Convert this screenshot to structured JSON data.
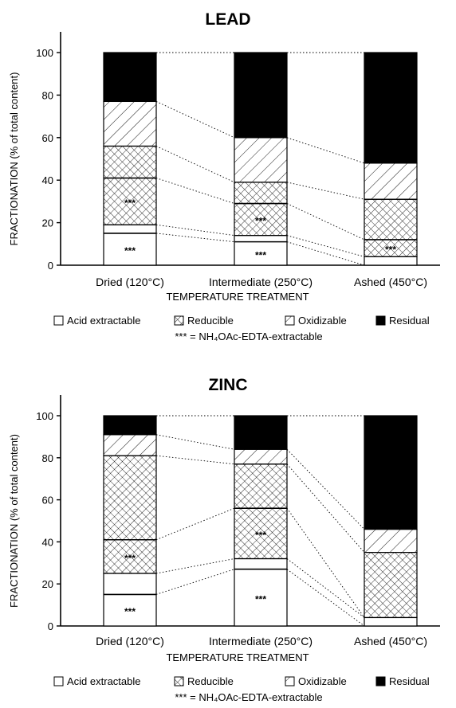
{
  "chart_data": [
    {
      "type": "bar",
      "title": "LEAD",
      "xlabel": "TEMPERATURE TREATMENT",
      "ylabel": "FRACTIONATION (% of total content)",
      "ylim": [
        0,
        100
      ],
      "yticks": [
        "0",
        "20",
        "40",
        "60",
        "80",
        "100"
      ],
      "categories": [
        "Dried (120°C)",
        "Intermediate (250°C)",
        "Ashed (450°C)"
      ],
      "series": [
        {
          "name": "Acid extractable",
          "pattern": "blank",
          "values": [
            19,
            14,
            4
          ]
        },
        {
          "name": "Reducible",
          "pattern": "crosshatch",
          "values": [
            37,
            25,
            27
          ]
        },
        {
          "name": "Oxidizable",
          "pattern": "diagonal",
          "values": [
            21,
            21,
            17
          ]
        },
        {
          "name": "Residual",
          "pattern": "solid",
          "values": [
            23,
            40,
            52
          ]
        }
      ],
      "edta_extractable": [
        {
          "category": "Dried (120°C)",
          "lower": 0,
          "upper": 15,
          "star_band": 0
        },
        {
          "category": "Dried (120°C)",
          "lower": 19,
          "upper": 41,
          "star_band": 1
        },
        {
          "category": "Intermediate (250°C)",
          "lower": 0,
          "upper": 11,
          "star_band": 0
        },
        {
          "category": "Intermediate (250°C)",
          "lower": 14,
          "upper": 29,
          "star_band": 1
        },
        {
          "category": "Ashed (450°C)",
          "lower": 4,
          "upper": 12,
          "star_band": 1
        }
      ],
      "stars_text": "***",
      "legend": {
        "items": [
          "Acid extractable",
          "Reducible",
          "Oxidizable",
          "Residual"
        ],
        "note": "*** = NH₄OAc-EDTA-extractable"
      },
      "grid": false
    },
    {
      "type": "bar",
      "title": "ZINC",
      "xlabel": "TEMPERATURE TREATMENT",
      "ylabel": "FRACTIONATION (% of total content)",
      "ylim": [
        0,
        100
      ],
      "yticks": [
        "0",
        "20",
        "40",
        "60",
        "80",
        "100"
      ],
      "categories": [
        "Dried (120°C)",
        "Intermediate (250°C)",
        "Ashed (450°C)"
      ],
      "series": [
        {
          "name": "Acid extractable",
          "pattern": "blank",
          "values": [
            25,
            32,
            4
          ]
        },
        {
          "name": "Reducible",
          "pattern": "crosshatch",
          "values": [
            56,
            45,
            31
          ]
        },
        {
          "name": "Oxidizable",
          "pattern": "diagonal",
          "values": [
            10,
            7,
            11
          ]
        },
        {
          "name": "Residual",
          "pattern": "solid",
          "values": [
            9,
            16,
            54
          ]
        }
      ],
      "edta_extractable": [
        {
          "category": "Dried (120°C)",
          "lower": 0,
          "upper": 15,
          "star_band": 0
        },
        {
          "category": "Dried (120°C)",
          "lower": 25,
          "upper": 41,
          "star_band": 1
        },
        {
          "category": "Intermediate (250°C)",
          "lower": 0,
          "upper": 27,
          "star_band": 0
        },
        {
          "category": "Intermediate (250°C)",
          "lower": 32,
          "upper": 56,
          "star_band": 1
        }
      ],
      "stars_text": "***",
      "legend": {
        "items": [
          "Acid extractable",
          "Reducible",
          "Oxidizable",
          "Residual"
        ],
        "note": "*** = NH₄OAc-EDTA-extractable"
      },
      "grid": false
    }
  ]
}
